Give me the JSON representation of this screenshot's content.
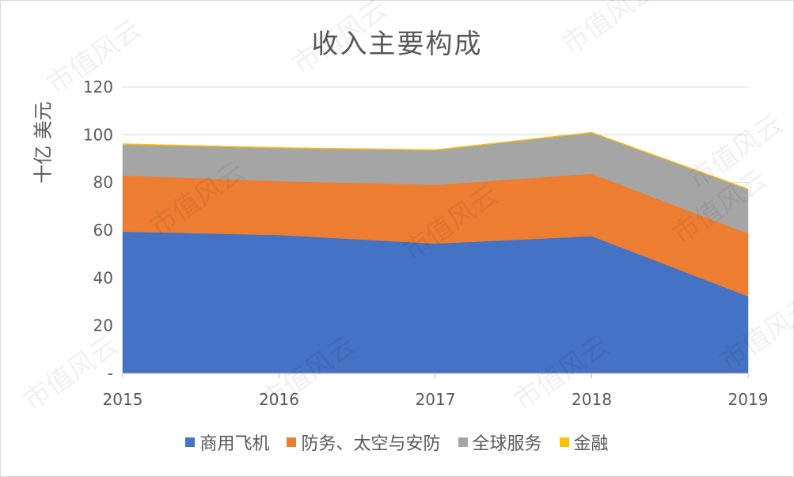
{
  "chart_data": {
    "type": "area",
    "stacked": true,
    "title": "收入主要构成",
    "ylabel": "十亿 美元",
    "xlabel": "",
    "x": [
      "2015",
      "2016",
      "2017",
      "2018",
      "2019"
    ],
    "ylim": [
      0,
      120
    ],
    "yticks": [
      0,
      20,
      40,
      60,
      80,
      100,
      120
    ],
    "ytick_labels": [
      "-",
      "20",
      "40",
      "60",
      "80",
      "100",
      "120"
    ],
    "grid": true,
    "legend_position": "bottom",
    "series": [
      {
        "name": "商用飞机",
        "color": "#4472C4",
        "values": [
          59.4,
          58.0,
          54.4,
          57.5,
          32.3
        ]
      },
      {
        "name": "防务、太空与安防",
        "color": "#ED7D31",
        "values": [
          23.5,
          22.6,
          24.6,
          26.2,
          26.3
        ]
      },
      {
        "name": "全球服务",
        "color": "#A5A5A5",
        "values": [
          13.0,
          13.8,
          14.5,
          17.1,
          18.5
        ]
      },
      {
        "name": "金融",
        "color": "#FFC000",
        "values": [
          0.4,
          0.3,
          0.3,
          0.3,
          0.3
        ]
      }
    ]
  },
  "watermark": {
    "text": "市值风云"
  }
}
